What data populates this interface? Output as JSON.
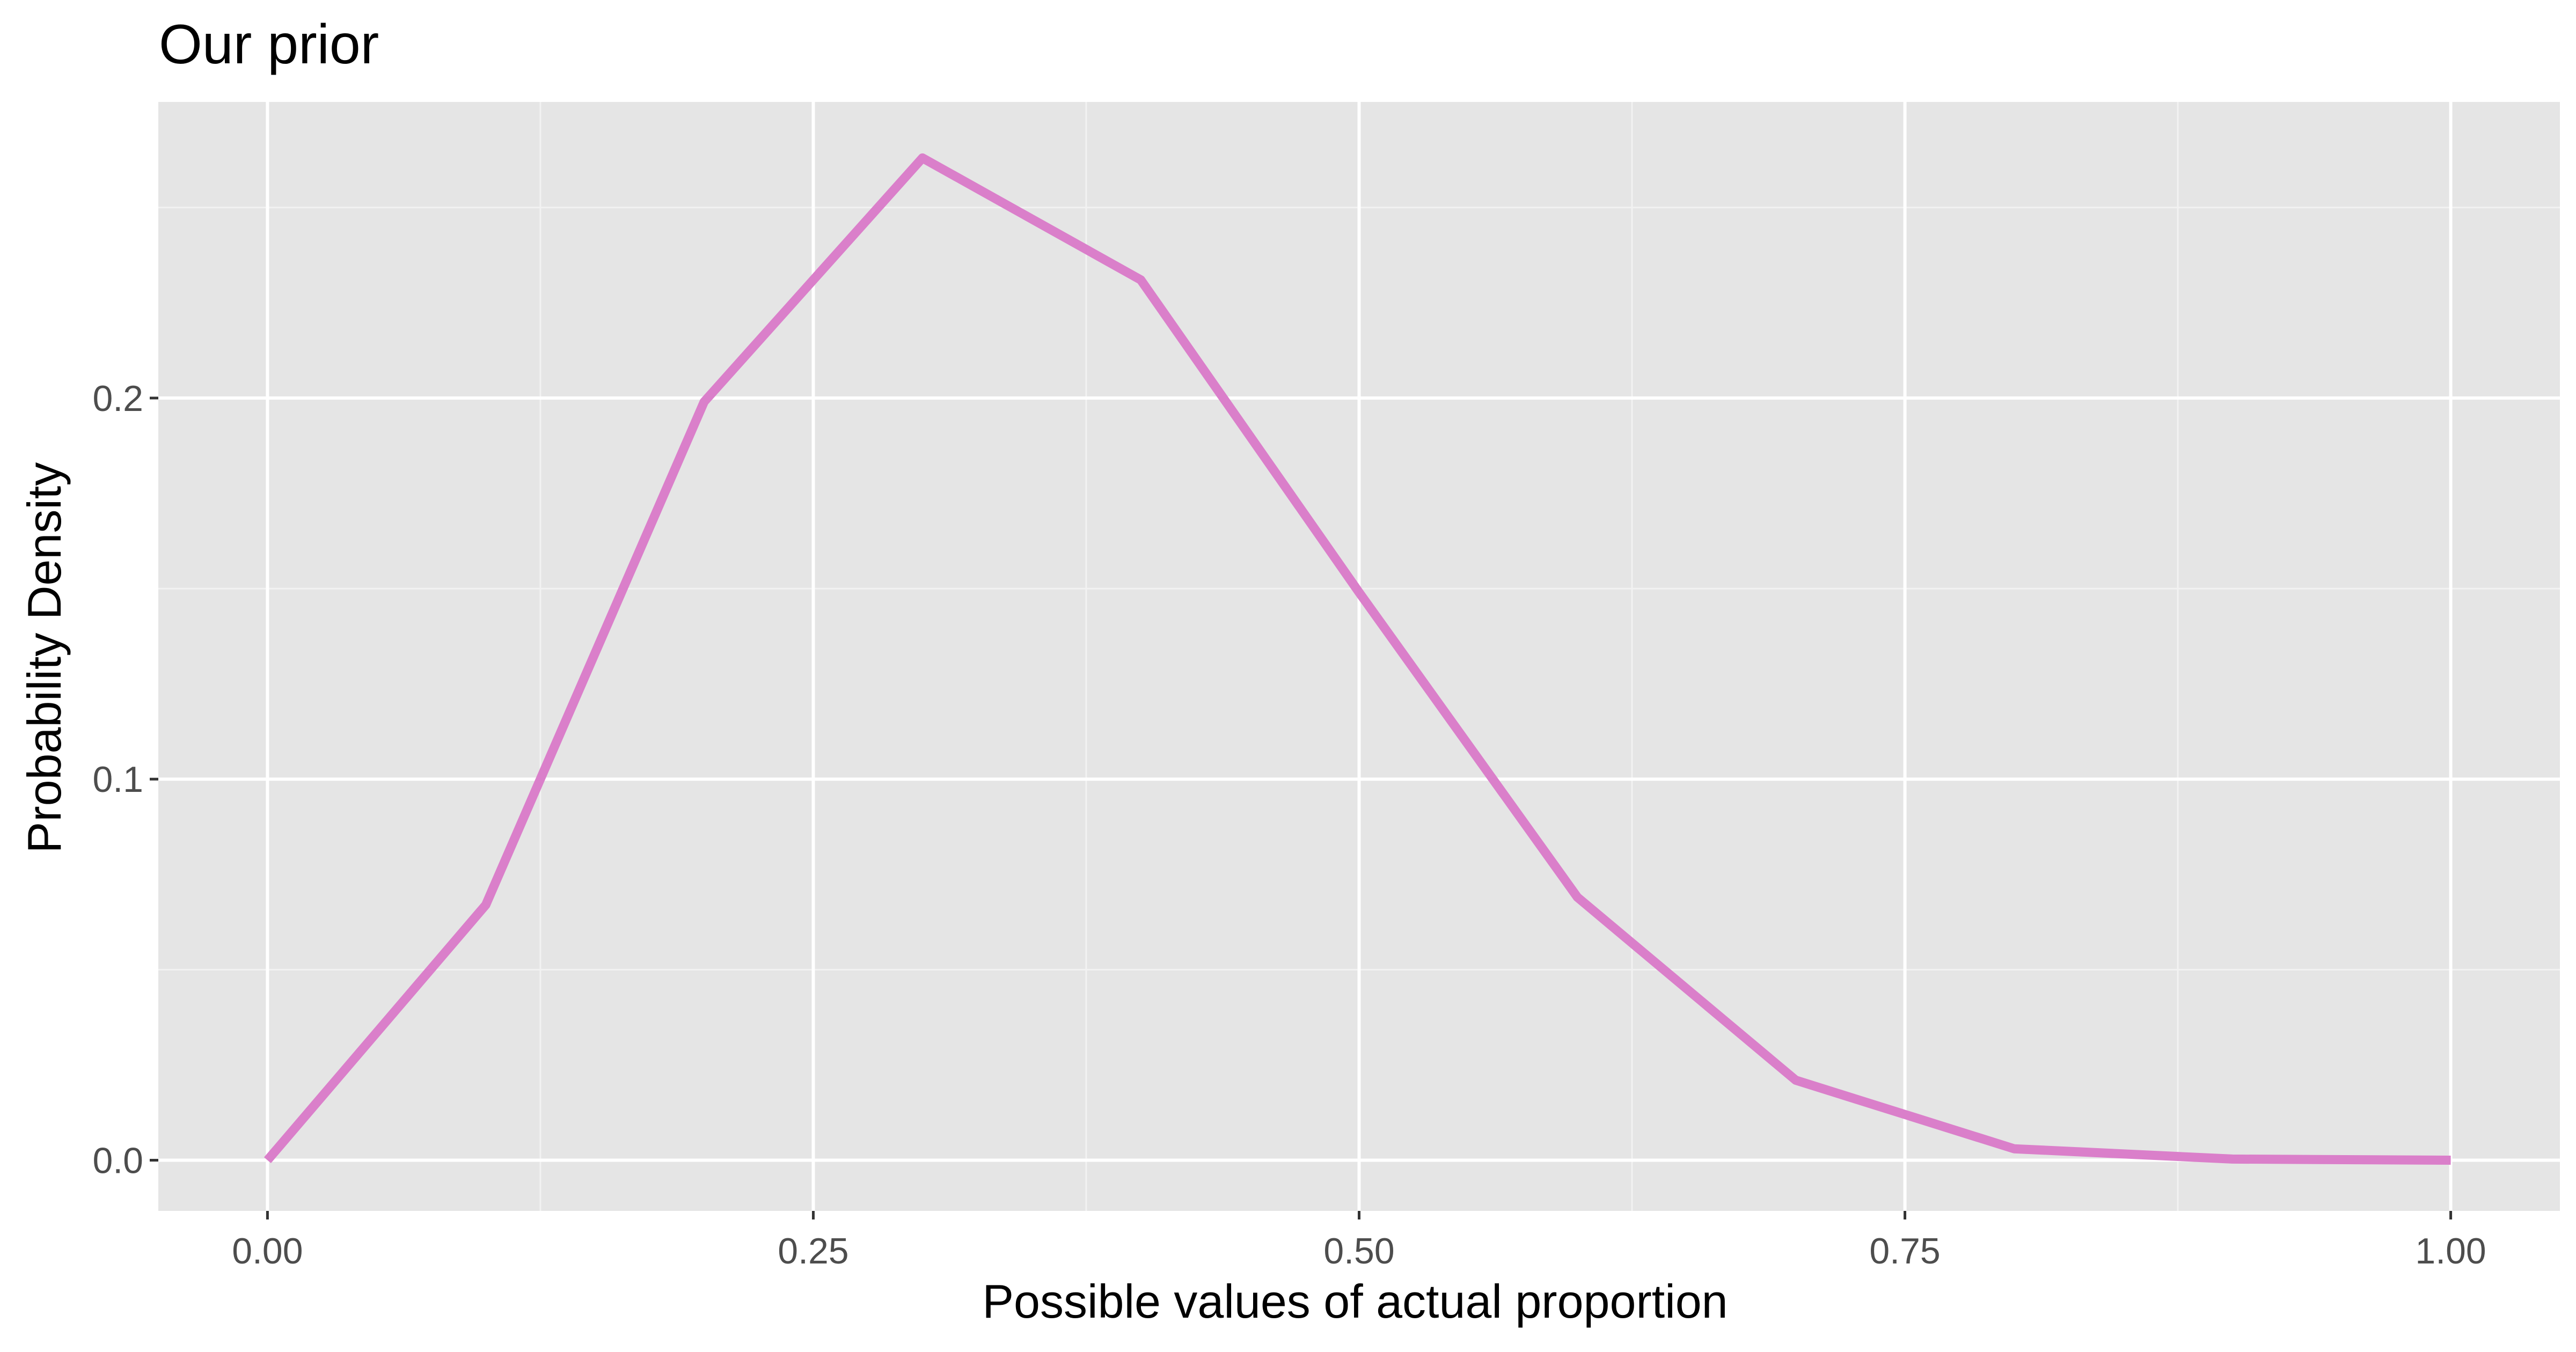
{
  "chart_data": {
    "type": "line",
    "title": "Our prior",
    "xlabel": "Possible values of actual proportion",
    "ylabel": "Probability Density",
    "x_ticks": [
      "0.00",
      "0.25",
      "0.50",
      "0.75",
      "1.00"
    ],
    "x_tick_values": [
      0,
      0.25,
      0.5,
      0.75,
      1.0
    ],
    "y_ticks": [
      "0.0",
      "0.1",
      "0.2"
    ],
    "y_tick_values": [
      0,
      0.1,
      0.2
    ],
    "xlim": [
      -0.05,
      1.05
    ],
    "ylim": [
      -0.0133,
      0.2777
    ],
    "grid": true,
    "legend": "none",
    "series": [
      {
        "color": "#da7fca",
        "x": [
          0,
          0.1,
          0.2,
          0.3,
          0.4,
          0.5,
          0.6,
          0.7,
          0.8,
          0.9,
          1.0
        ],
        "y": [
          0,
          0.067,
          0.199,
          0.263,
          0.231,
          0.149,
          0.069,
          0.021,
          0.003,
          0.0003,
          0
        ]
      }
    ],
    "colors": {
      "panel_background": "#e5e5e5",
      "grid_major": "#ffffff",
      "grid_minor": "#f2f2f2",
      "tick_mark": "#333333",
      "tick_text": "#4d4d4d"
    }
  }
}
